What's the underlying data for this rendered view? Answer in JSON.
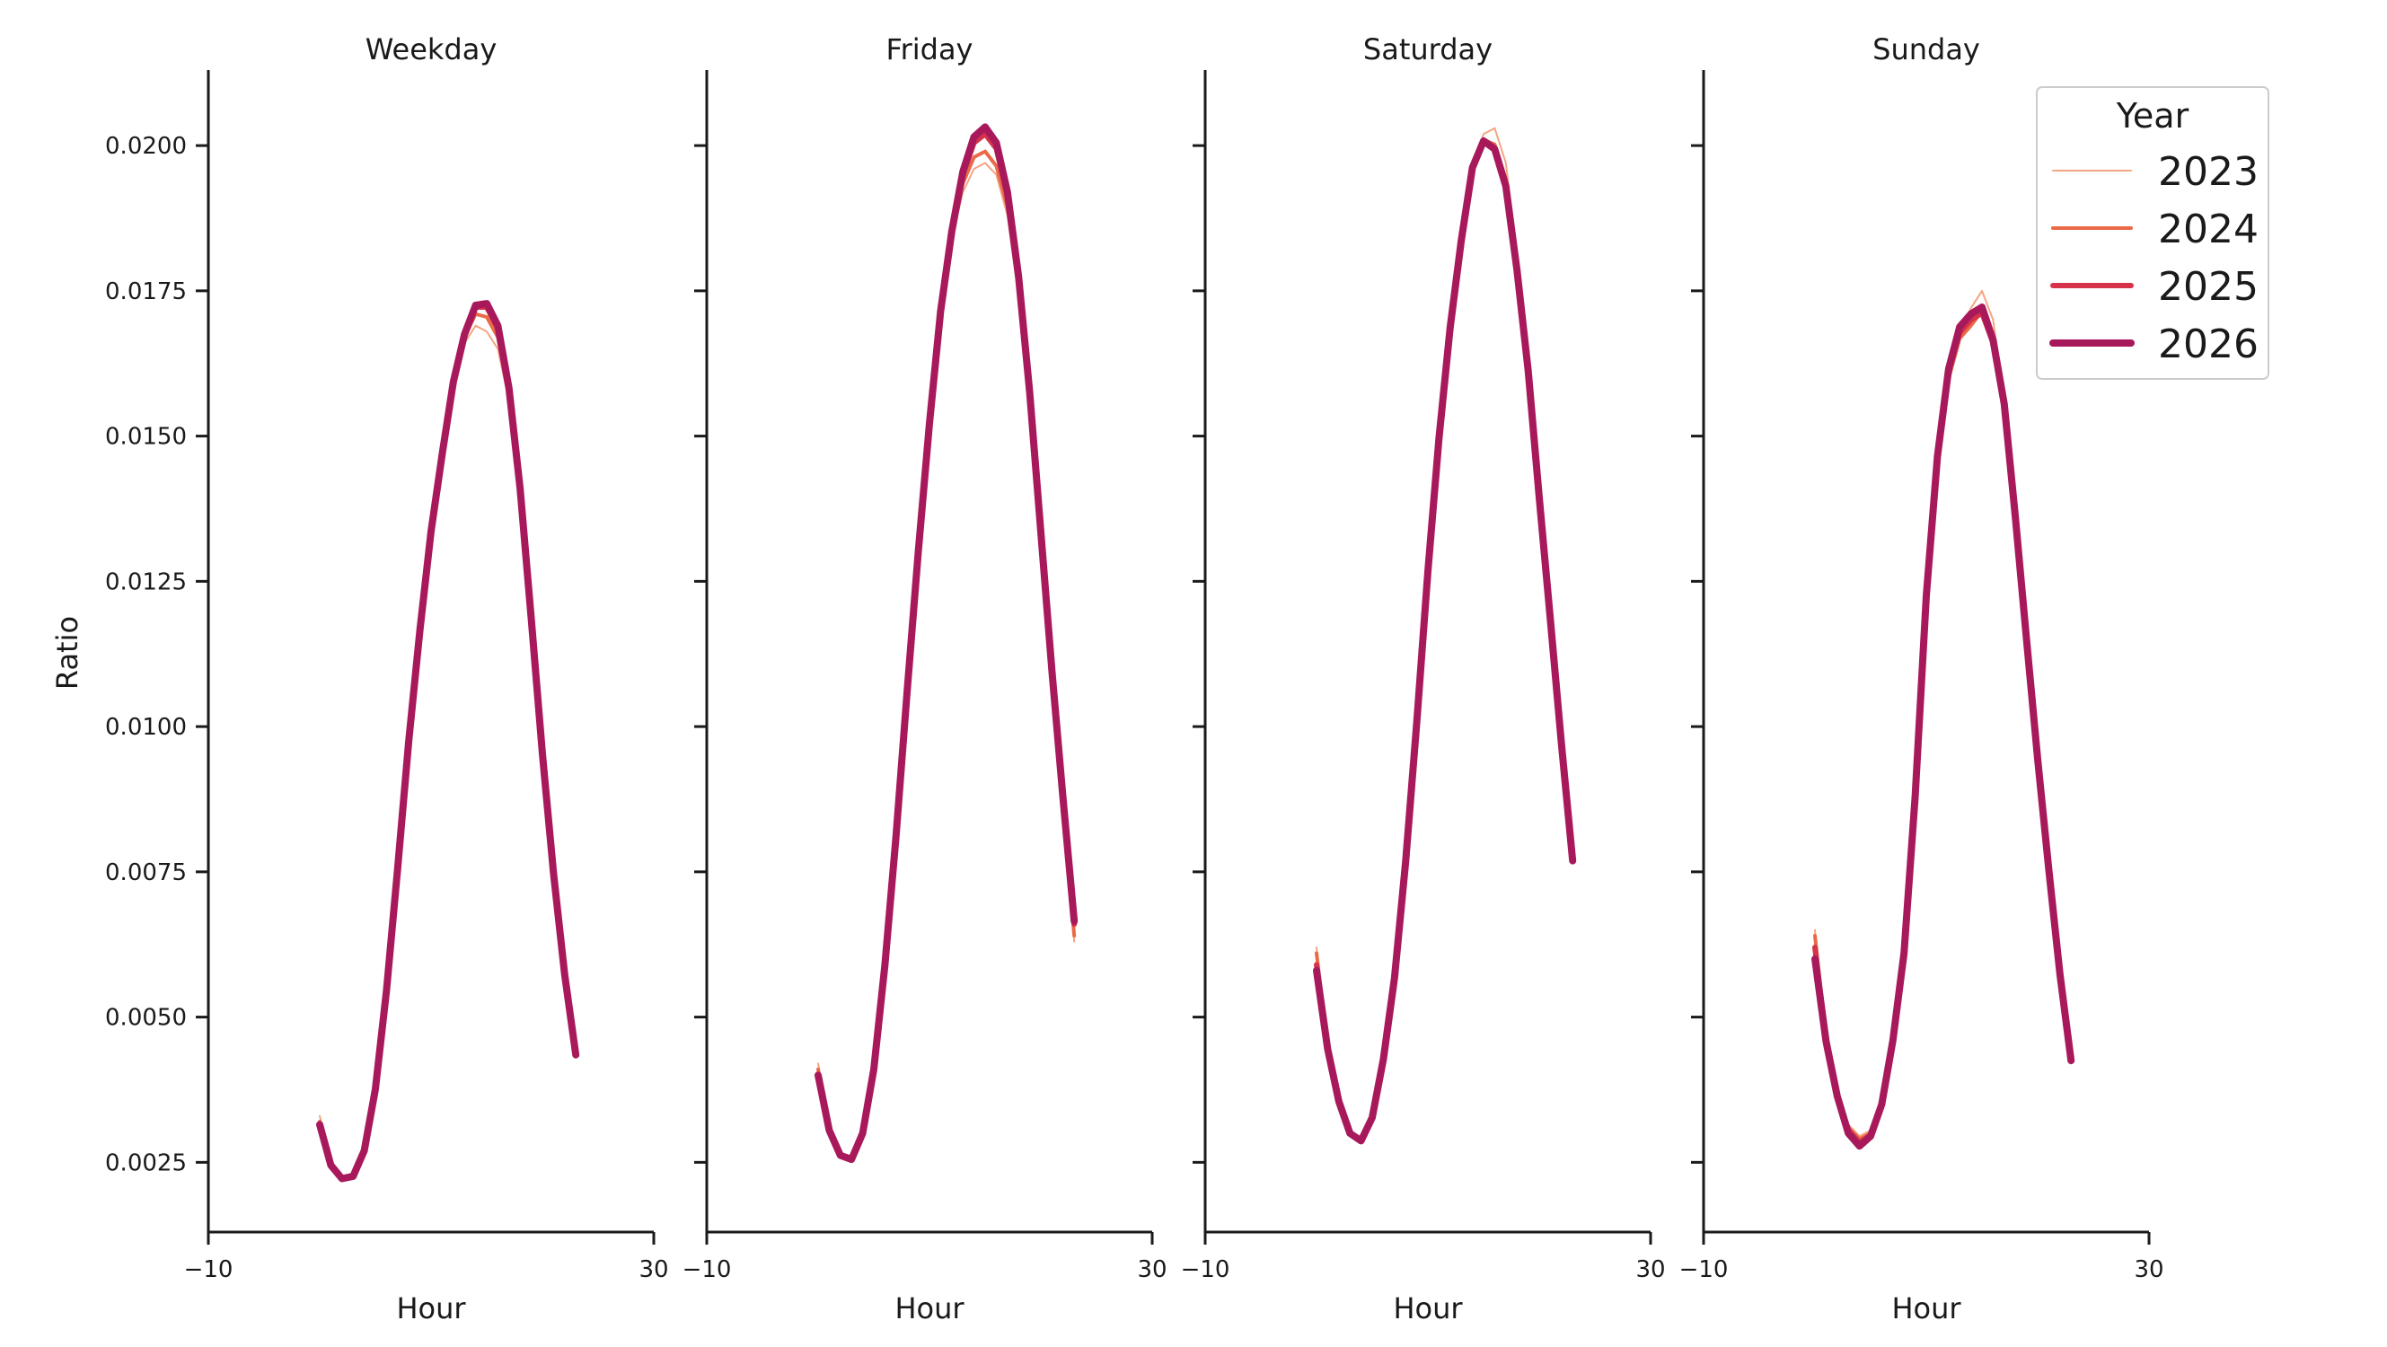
{
  "chart_data": {
    "type": "line",
    "ylabel": "Ratio",
    "xlabel": "Hour",
    "xlim": [
      -10,
      30
    ],
    "ylim": [
      0.0013,
      0.0213
    ],
    "x_ticks": [
      -10,
      30
    ],
    "x_tick_labels": [
      "−10",
      "30"
    ],
    "y_ticks": [
      0.0025,
      0.005,
      0.0075,
      0.01,
      0.0125,
      0.015,
      0.0175,
      0.02
    ],
    "y_tick_labels": [
      "0.0025",
      "0.0050",
      "0.0075",
      "0.0100",
      "0.0125",
      "0.0150",
      "0.0175",
      "0.0200"
    ],
    "grid": false,
    "legend": {
      "title": "Year",
      "placement": "top-right",
      "entries": [
        {
          "name": "2023",
          "color": "#f4a582"
        },
        {
          "name": "2024",
          "color": "#ea6a47"
        },
        {
          "name": "2025",
          "color": "#d6334a"
        },
        {
          "name": "2026",
          "color": "#a8195c"
        }
      ]
    },
    "x": [
      0,
      1,
      2,
      3,
      4,
      5,
      6,
      7,
      8,
      9,
      10,
      11,
      12,
      13,
      14,
      15,
      16,
      17,
      18,
      19,
      20,
      21,
      22,
      23
    ],
    "panels": [
      {
        "title": "Weekday",
        "series": [
          {
            "name": "2023",
            "values": [
              0.0033,
              0.0025,
              0.00225,
              0.0023,
              0.00275,
              0.0038,
              0.0055,
              0.0076,
              0.0098,
              0.0117,
              0.0134,
              0.0147,
              0.0159,
              0.0166,
              0.0169,
              0.0168,
              0.0165,
              0.0156,
              0.014,
              0.0118,
              0.0095,
              0.0075,
              0.0058,
              0.0044
            ]
          },
          {
            "name": "2024",
            "values": [
              0.0032,
              0.00248,
              0.00224,
              0.00228,
              0.00272,
              0.00378,
              0.00548,
              0.00758,
              0.00978,
              0.01168,
              0.01338,
              0.0147,
              0.01592,
              0.0167,
              0.0171,
              0.01705,
              0.0167,
              0.01575,
              0.01405,
              0.01182,
              0.00952,
              0.00748,
              0.00575,
              0.00436
            ]
          },
          {
            "name": "2025",
            "values": [
              0.00315,
              0.00245,
              0.00222,
              0.00226,
              0.0027,
              0.00376,
              0.00546,
              0.00756,
              0.00976,
              0.01166,
              0.01336,
              0.01469,
              0.01593,
              0.01675,
              0.01722,
              0.01722,
              0.01685,
              0.0158,
              0.01408,
              0.01184,
              0.00953,
              0.00747,
              0.00573,
              0.00435
            ]
          },
          {
            "name": "2026",
            "values": [
              0.00315,
              0.00245,
              0.00222,
              0.00226,
              0.0027,
              0.00376,
              0.00546,
              0.00756,
              0.00976,
              0.01166,
              0.01336,
              0.01469,
              0.01593,
              0.01675,
              0.01725,
              0.01728,
              0.0169,
              0.01582,
              0.01409,
              0.01185,
              0.00953,
              0.00747,
              0.00573,
              0.00435
            ]
          }
        ]
      },
      {
        "title": "Friday",
        "series": [
          {
            "name": "2023",
            "values": [
              0.0042,
              0.0031,
              0.00262,
              0.00258,
              0.003,
              0.0041,
              0.0059,
              0.0081,
              0.0106,
              0.013,
              0.0152,
              0.0171,
              0.0184,
              0.0192,
              0.0196,
              0.0197,
              0.0195,
              0.0188,
              0.0174,
              0.0154,
              0.013,
              0.0106,
              0.0084,
              0.0063
            ]
          },
          {
            "name": "2024",
            "values": [
              0.0041,
              0.00308,
              0.00262,
              0.00256,
              0.003,
              0.0041,
              0.0059,
              0.0081,
              0.0106,
              0.013,
              0.0152,
              0.01712,
              0.01848,
              0.01935,
              0.0198,
              0.0199,
              0.01965,
              0.01895,
              0.01755,
              0.01555,
              0.0131,
              0.0107,
              0.0085,
              0.0064
            ]
          },
          {
            "name": "2025",
            "values": [
              0.004,
              0.00305,
              0.00262,
              0.00255,
              0.003,
              0.0041,
              0.0059,
              0.00812,
              0.01062,
              0.01302,
              0.01522,
              0.01715,
              0.01852,
              0.0195,
              0.02005,
              0.0202,
              0.01995,
              0.01915,
              0.0177,
              0.0157,
              0.0133,
              0.0109,
              0.0087,
              0.0066
            ]
          },
          {
            "name": "2026",
            "values": [
              0.004,
              0.00305,
              0.00262,
              0.00255,
              0.003,
              0.0041,
              0.0059,
              0.00812,
              0.01062,
              0.01302,
              0.01522,
              0.01715,
              0.01852,
              0.01955,
              0.02015,
              0.02032,
              0.02005,
              0.0192,
              0.01775,
              0.01575,
              0.01335,
              0.01095,
              0.00875,
              0.00665
            ]
          }
        ]
      },
      {
        "title": "Saturday",
        "series": [
          {
            "name": "2023",
            "values": [
              0.0062,
              0.0045,
              0.0036,
              0.00305,
              0.0029,
              0.0033,
              0.0043,
              0.0057,
              0.0077,
              0.0101,
              0.0127,
              0.015,
              0.0169,
              0.0184,
              0.0196,
              0.0202,
              0.0203,
              0.0197,
              0.0181,
              0.0163,
              0.0141,
              0.012,
              0.0098,
              0.0078
            ]
          },
          {
            "name": "2024",
            "values": [
              0.0061,
              0.00448,
              0.00358,
              0.00302,
              0.00288,
              0.00328,
              0.00428,
              0.00568,
              0.00768,
              0.01008,
              0.01268,
              0.01498,
              0.01688,
              0.01838,
              0.01958,
              0.0201,
              0.02002,
              0.01942,
              0.01795,
              0.0162,
              0.014,
              0.0119,
              0.00975,
              0.00775
            ]
          },
          {
            "name": "2025",
            "values": [
              0.0059,
              0.00446,
              0.00356,
              0.003,
              0.00287,
              0.00327,
              0.00427,
              0.00567,
              0.00767,
              0.01007,
              0.01267,
              0.01497,
              0.01687,
              0.01837,
              0.0196,
              0.02008,
              0.01995,
              0.01932,
              0.01788,
              0.01615,
              0.01395,
              0.01185,
              0.0097,
              0.0077
            ]
          },
          {
            "name": "2026",
            "values": [
              0.0058,
              0.00445,
              0.00355,
              0.003,
              0.00287,
              0.00327,
              0.00427,
              0.00567,
              0.00767,
              0.01007,
              0.01267,
              0.01497,
              0.01687,
              0.01837,
              0.01962,
              0.02008,
              0.01994,
              0.0193,
              0.01786,
              0.01614,
              0.01394,
              0.01184,
              0.00969,
              0.00769
            ]
          }
        ]
      },
      {
        "title": "Sunday",
        "series": [
          {
            "name": "2023",
            "values": [
              0.0065,
              0.00465,
              0.00368,
              0.00315,
              0.00295,
              0.00305,
              0.0036,
              0.0047,
              0.0062,
              0.0089,
              0.0123,
              0.0147,
              0.016,
              0.0168,
              0.0172,
              0.0175,
              0.017,
              0.0156,
              0.0137,
              0.0116,
              0.0095,
              0.0076,
              0.0058,
              0.0043
            ]
          },
          {
            "name": "2024",
            "values": [
              0.0064,
              0.00462,
              0.00366,
              0.0031,
              0.0029,
              0.003,
              0.00355,
              0.00465,
              0.00615,
              0.00885,
              0.01228,
              0.01468,
              0.01598,
              0.01668,
              0.0169,
              0.01715,
              0.01665,
              0.01548,
              0.0136,
              0.01152,
              0.00946,
              0.00756,
              0.00576,
              0.00428
            ]
          },
          {
            "name": "2025",
            "values": [
              0.0062,
              0.0046,
              0.00365,
              0.00305,
              0.00284,
              0.00297,
              0.00352,
              0.00462,
              0.00612,
              0.00882,
              0.01226,
              0.01466,
              0.0161,
              0.01678,
              0.017,
              0.01712,
              0.0166,
              0.0155,
              0.01358,
              0.0115,
              0.00944,
              0.00754,
              0.00574,
              0.00426
            ]
          },
          {
            "name": "2026",
            "values": [
              0.006,
              0.00458,
              0.00364,
              0.003,
              0.00278,
              0.00295,
              0.0035,
              0.0046,
              0.0061,
              0.0088,
              0.01225,
              0.01465,
              0.01615,
              0.01688,
              0.0171,
              0.01722,
              0.01665,
              0.01555,
              0.0136,
              0.0115,
              0.00944,
              0.00754,
              0.00574,
              0.00425
            ]
          }
        ]
      }
    ]
  },
  "style": {
    "series_widths": {
      "2023": 2,
      "2024": 4,
      "2025": 6,
      "2026": 8
    },
    "axis_color": "#1a1a1a"
  }
}
